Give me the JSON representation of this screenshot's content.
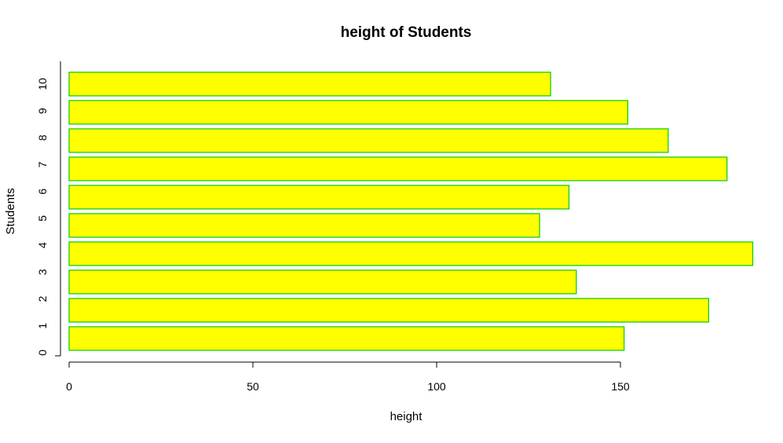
{
  "chart_data": {
    "type": "bar",
    "orientation": "horizontal",
    "title": "height of Students",
    "xlabel": "height",
    "ylabel": "Students",
    "categories": [
      "1",
      "2",
      "3",
      "4",
      "5",
      "6",
      "7",
      "8",
      "9",
      "10"
    ],
    "values": [
      151,
      174,
      138,
      186,
      128,
      136,
      179,
      163,
      152,
      131
    ],
    "xlim": [
      0,
      186
    ],
    "x_ticks": [
      0,
      50,
      100,
      150
    ],
    "y_tick_labels": [
      "0",
      "1",
      "2",
      "3",
      "4",
      "5",
      "6",
      "7",
      "8",
      "9",
      "10"
    ],
    "grid": false,
    "legend": "none",
    "colors": {
      "bar_fill": "#ffff00",
      "bar_border": "#00cc00",
      "axis": "#000000",
      "text": "#000000",
      "background": "#ffffff"
    }
  }
}
